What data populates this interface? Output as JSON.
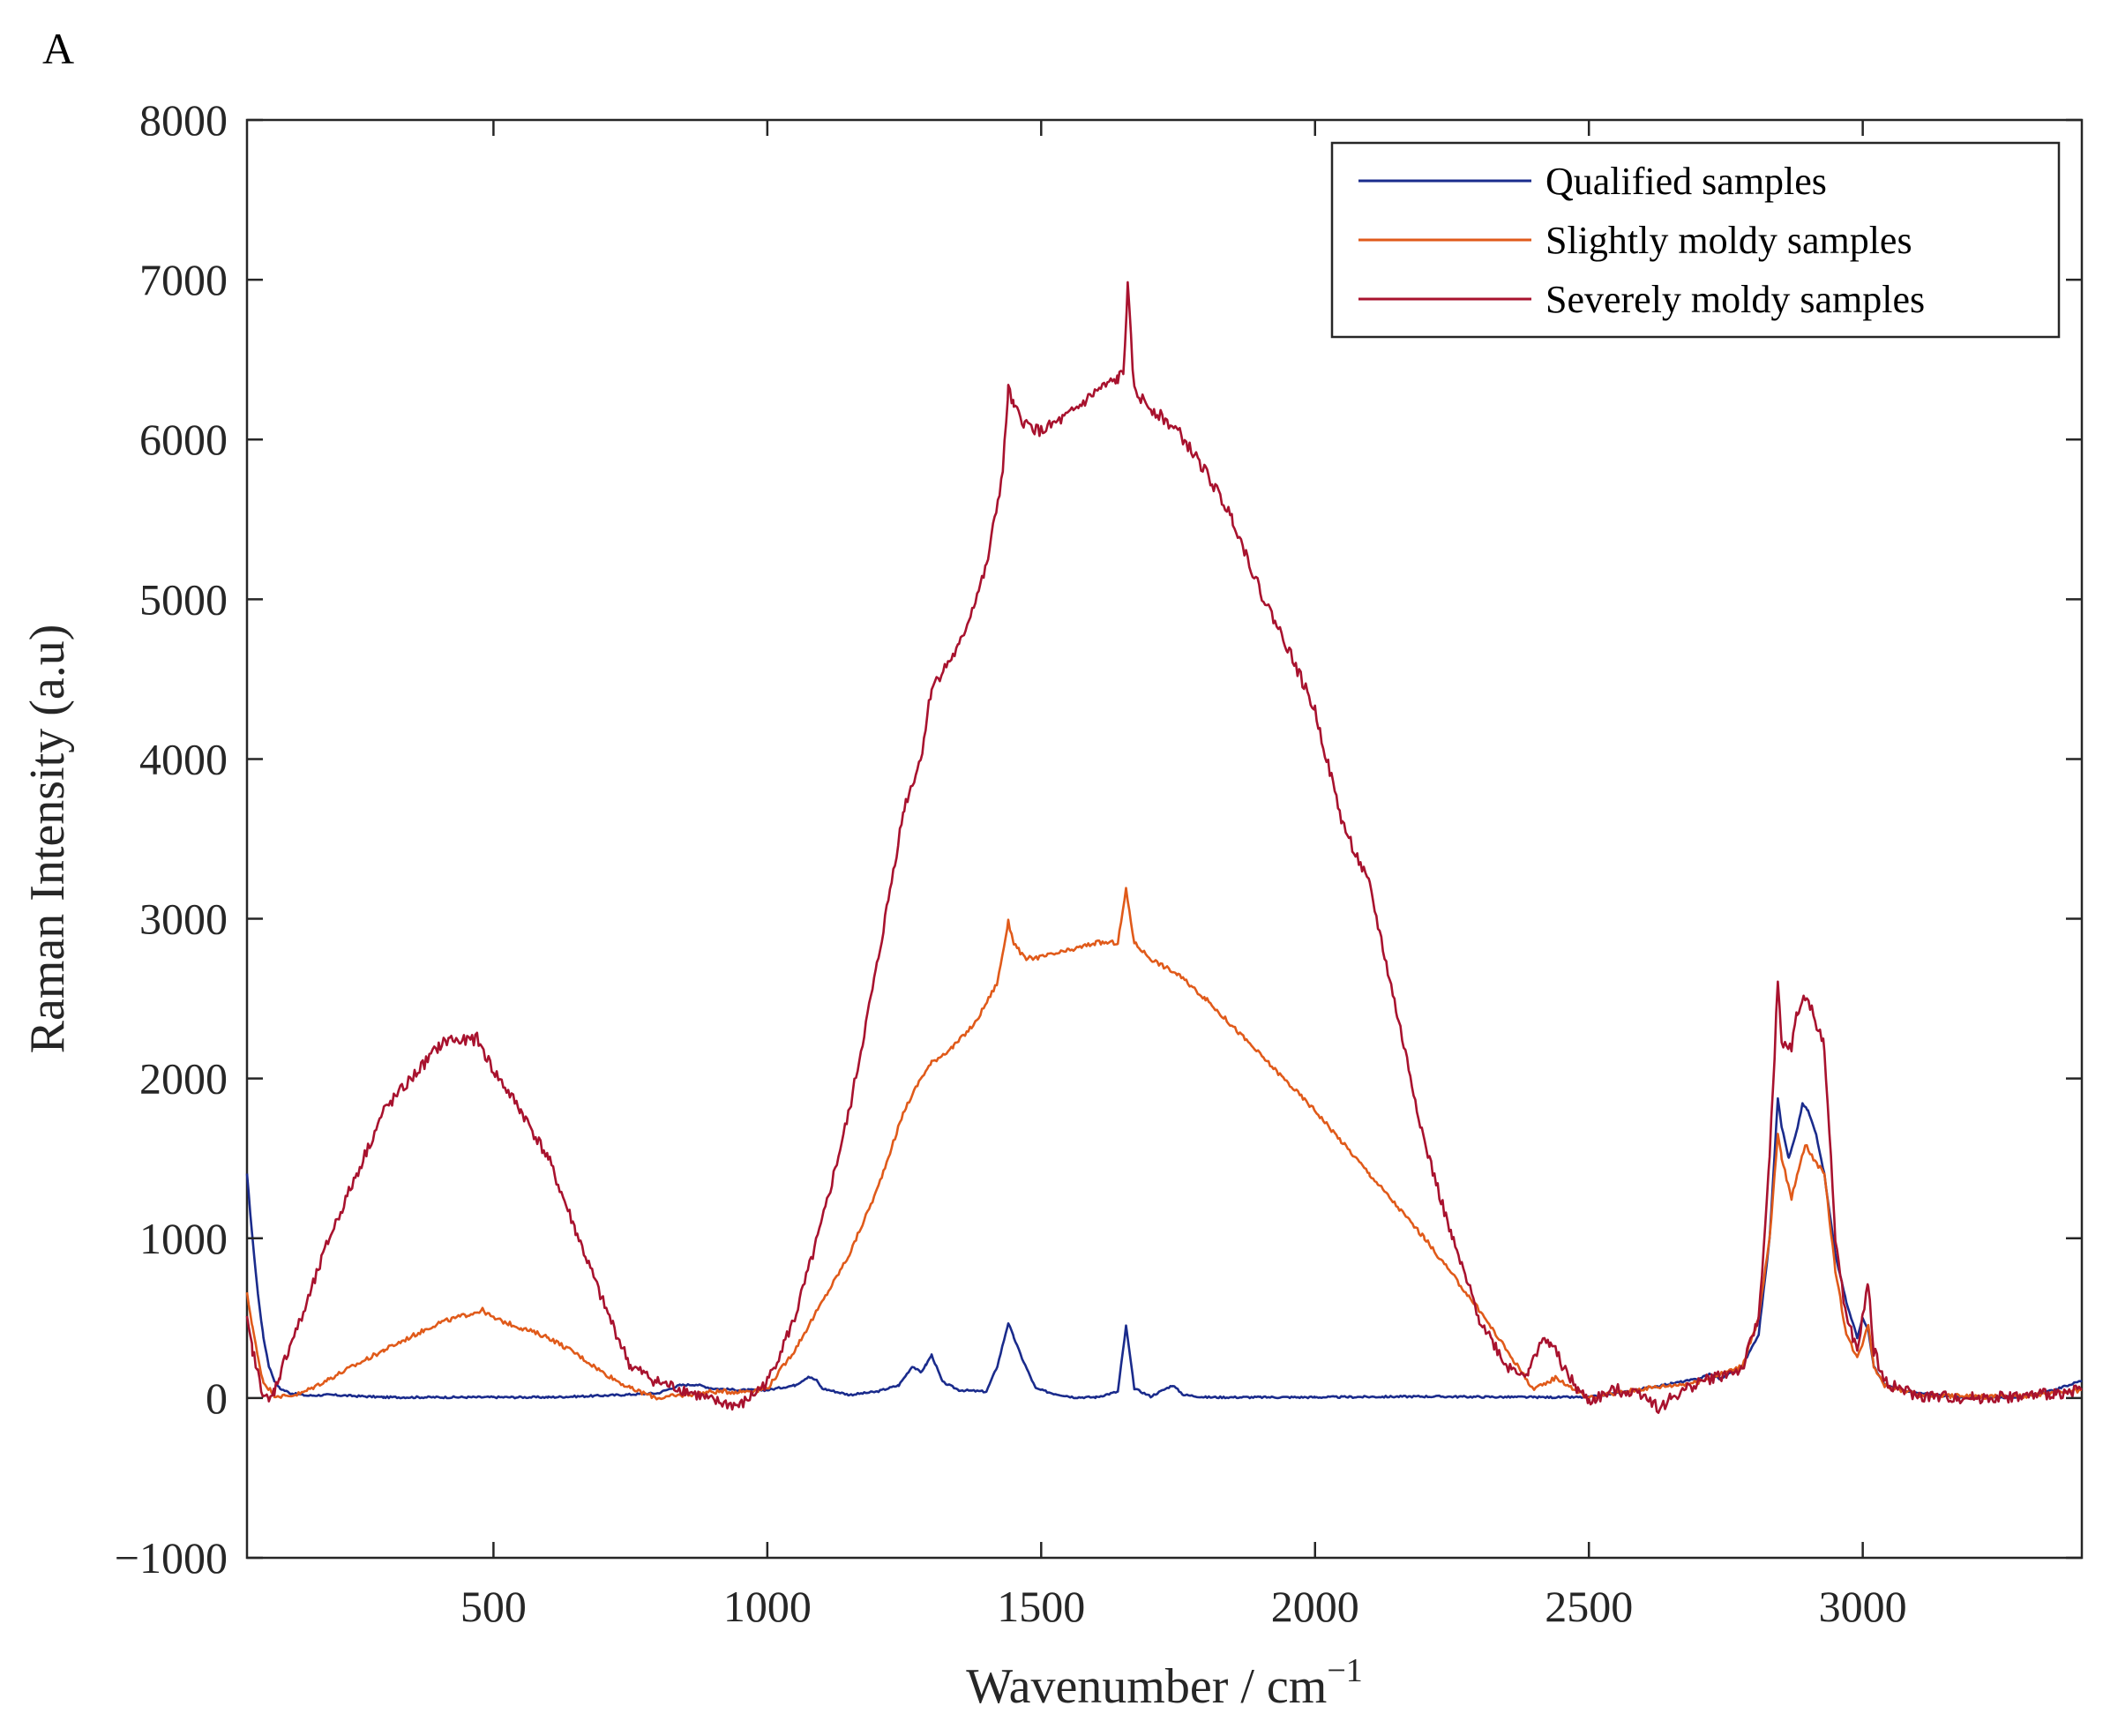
{
  "panel_label": "A",
  "colors": {
    "qualified": "#1a2b8c",
    "slight": "#e05a1a",
    "severe": "#a8122e",
    "axis": "#262626"
  },
  "chart_data": {
    "type": "line",
    "title": "",
    "xlabel": "Wavenumber / cm",
    "xlabel_sup": "−1",
    "ylabel": "Raman Intensity (a.u)",
    "xlim": [
      50,
      3400
    ],
    "ylim": [
      -1000,
      8000
    ],
    "xticks": [
      500,
      1000,
      1500,
      2000,
      2500,
      3000
    ],
    "xtick_labels": [
      "500",
      "1000",
      "1500",
      "2000",
      "2500",
      "3000"
    ],
    "yticks": [
      -1000,
      0,
      1000,
      2000,
      3000,
      4000,
      5000,
      6000,
      7000,
      8000
    ],
    "ytick_labels": [
      "−1000",
      "0",
      "1000",
      "2000",
      "3000",
      "4000",
      "5000",
      "6000",
      "7000",
      "8000"
    ],
    "legend_position": "top-right",
    "series": [
      {
        "name": "Qualified samples",
        "color": "#1a2b8c",
        "x": [
          50,
          60,
          70,
          80,
          90,
          100,
          110,
          130,
          160,
          200,
          300,
          400,
          500,
          600,
          700,
          800,
          840,
          870,
          900,
          950,
          1000,
          1050,
          1060,
          1075,
          1090,
          1100,
          1150,
          1200,
          1240,
          1265,
          1280,
          1290,
          1300,
          1320,
          1350,
          1400,
          1420,
          1440,
          1450,
          1465,
          1490,
          1520,
          1560,
          1600,
          1640,
          1655,
          1670,
          1700,
          1740,
          1760,
          1800,
          1900,
          2000,
          2200,
          2400,
          2500,
          2550,
          2600,
          2650,
          2700,
          2720,
          2740,
          2780,
          2810,
          2830,
          2845,
          2852,
          2865,
          2878,
          2890,
          2900,
          2915,
          2930,
          2950,
          2970,
          2990,
          3000,
          3010,
          3020,
          3040,
          3100,
          3200,
          3300,
          3350,
          3400
        ],
        "values": [
          1400,
          1000,
          650,
          380,
          200,
          110,
          60,
          30,
          15,
          20,
          5,
          5,
          5,
          5,
          15,
          30,
          80,
          85,
          60,
          50,
          50,
          80,
          100,
          135,
          110,
          60,
          20,
          40,
          80,
          200,
          160,
          210,
          270,
          100,
          50,
          40,
          200,
          470,
          380,
          250,
          60,
          30,
          5,
          5,
          40,
          450,
          60,
          10,
          80,
          20,
          5,
          5,
          5,
          10,
          5,
          5,
          30,
          60,
          90,
          120,
          150,
          120,
          200,
          400,
          1000,
          1880,
          1700,
          1500,
          1650,
          1840,
          1800,
          1650,
          1400,
          900,
          600,
          380,
          500,
          420,
          200,
          80,
          30,
          0,
          10,
          50,
          110
        ]
      },
      {
        "name": "Slightly moldy samples",
        "color": "#e05a1a",
        "x": [
          50,
          60,
          70,
          80,
          100,
          120,
          150,
          200,
          300,
          400,
          450,
          480,
          500,
          550,
          600,
          650,
          700,
          750,
          800,
          850,
          900,
          950,
          1000,
          1050,
          1100,
          1150,
          1200,
          1250,
          1280,
          1300,
          1340,
          1380,
          1420,
          1440,
          1450,
          1470,
          1500,
          1550,
          1600,
          1640,
          1655,
          1670,
          1700,
          1750,
          1800,
          1900,
          2000,
          2100,
          2200,
          2300,
          2400,
          2440,
          2470,
          2500,
          2550,
          2600,
          2700,
          2780,
          2810,
          2830,
          2845,
          2852,
          2870,
          2880,
          2895,
          2910,
          2930,
          2950,
          2970,
          2990,
          3000,
          3010,
          3020,
          3040,
          3100,
          3200,
          3300,
          3350,
          3400
        ],
        "values": [
          650,
          450,
          250,
          100,
          20,
          10,
          30,
          120,
          300,
          470,
          520,
          550,
          500,
          440,
          380,
          280,
          160,
          60,
          0,
          20,
          40,
          40,
          60,
          300,
          600,
          900,
          1300,
          1800,
          2000,
          2100,
          2200,
          2350,
          2600,
          2980,
          2850,
          2750,
          2760,
          2800,
          2850,
          2850,
          3180,
          2850,
          2750,
          2650,
          2500,
          2150,
          1800,
          1400,
          1000,
          550,
          50,
          130,
          60,
          0,
          30,
          60,
          100,
          200,
          500,
          1000,
          1650,
          1500,
          1250,
          1400,
          1590,
          1500,
          1400,
          800,
          400,
          250,
          350,
          470,
          200,
          80,
          20,
          10,
          10,
          30,
          50
        ]
      },
      {
        "name": "Severely moldy samples",
        "color": "#a8122e",
        "x": [
          50,
          60,
          70,
          80,
          90,
          100,
          110,
          130,
          150,
          200,
          250,
          300,
          350,
          400,
          420,
          440,
          470,
          500,
          550,
          600,
          650,
          700,
          750,
          800,
          850,
          900,
          950,
          1000,
          1050,
          1100,
          1150,
          1200,
          1250,
          1280,
          1300,
          1350,
          1400,
          1430,
          1440,
          1450,
          1470,
          1500,
          1550,
          1600,
          1640,
          1650,
          1658,
          1670,
          1700,
          1750,
          1800,
          1850,
          1900,
          1950,
          2000,
          2050,
          2100,
          2150,
          2200,
          2250,
          2300,
          2350,
          2390,
          2410,
          2430,
          2460,
          2480,
          2500,
          2550,
          2600,
          2630,
          2650,
          2700,
          2780,
          2810,
          2830,
          2845,
          2852,
          2870,
          2880,
          2895,
          2910,
          2930,
          2950,
          2970,
          2990,
          3000,
          3010,
          3020,
          3040,
          3100,
          3200,
          3300,
          3350,
          3400
        ],
        "values": [
          480,
          300,
          150,
          30,
          -30,
          50,
          150,
          350,
          500,
          1000,
          1400,
          1800,
          2000,
          2200,
          2250,
          2230,
          2250,
          2050,
          1800,
          1500,
          1050,
          600,
          200,
          100,
          50,
          -20,
          -50,
          100,
          500,
          1100,
          1800,
          2700,
          3700,
          4000,
          4450,
          4700,
          5200,
          5800,
          6320,
          6200,
          6100,
          6050,
          6150,
          6300,
          6380,
          6420,
          6950,
          6300,
          6200,
          6050,
          5800,
          5500,
          5050,
          4700,
          4300,
          3600,
          3200,
          2400,
          1600,
          1000,
          500,
          200,
          150,
          350,
          350,
          150,
          50,
          -20,
          50,
          30,
          -70,
          0,
          100,
          180,
          500,
          1500,
          2600,
          2200,
          2200,
          2400,
          2520,
          2400,
          2200,
          1000,
          500,
          300,
          500,
          720,
          300,
          100,
          10,
          0,
          10,
          30,
          50
        ]
      }
    ]
  }
}
